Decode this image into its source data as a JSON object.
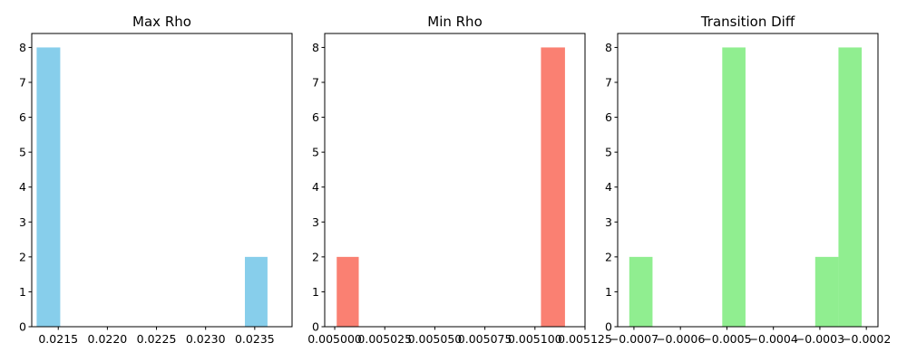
{
  "chart_data": [
    {
      "type": "bar",
      "title": "Max Rho",
      "color": "#87CEEB",
      "xlim": [
        0.02123,
        0.02388
      ],
      "ylim": [
        0,
        8.4
      ],
      "bin_edges": [
        0.02128,
        0.02152,
        0.02175,
        0.02199,
        0.02222,
        0.02246,
        0.02269,
        0.02293,
        0.02316,
        0.0234,
        0.02363
      ],
      "counts": [
        8,
        0,
        0,
        0,
        0,
        0,
        0,
        0,
        0,
        2
      ],
      "xticks": [
        0.0215,
        0.022,
        0.0225,
        0.023,
        0.0235
      ],
      "xtick_labels": [
        "0.0215",
        "0.0220",
        "0.0225",
        "0.0230",
        "0.0235"
      ],
      "yticks": [
        0,
        1,
        2,
        3,
        4,
        5,
        6,
        7,
        8
      ],
      "ytick_labels": [
        "0",
        "1",
        "2",
        "3",
        "4",
        "5",
        "6",
        "7",
        "8"
      ],
      "grid": false
    },
    {
      "type": "bar",
      "title": "Min Rho",
      "color": "#FA8072",
      "xlim": [
        0.004995,
        0.005125
      ],
      "ylim": [
        0,
        8.4
      ],
      "bin_edges": [
        0.005001,
        0.005012,
        0.005024,
        0.005035,
        0.005046,
        0.005058,
        0.005069,
        0.00508,
        0.005092,
        0.005103,
        0.005115
      ],
      "counts": [
        2,
        0,
        0,
        0,
        0,
        0,
        0,
        0,
        0,
        8
      ],
      "xticks": [
        0.005,
        0.005025,
        0.00505,
        0.005075,
        0.0051,
        0.005125
      ],
      "xtick_labels": [
        "0.005000",
        "0.005025",
        "0.005050",
        "0.005075",
        "0.005100",
        "0.005125"
      ],
      "yticks": [
        0,
        1,
        2,
        3,
        4,
        5,
        6,
        7,
        8
      ],
      "ytick_labels": [
        "0",
        "1",
        "2",
        "3",
        "4",
        "5",
        "6",
        "7",
        "8"
      ],
      "grid": false
    },
    {
      "type": "bar",
      "title": "Transition Diff",
      "color": "#90EE90",
      "xlim": [
        -0.000735,
        -0.000175
      ],
      "ylim": [
        0,
        8.4
      ],
      "bin_edges": [
        -0.00071,
        -0.00066,
        -0.00061,
        -0.00056,
        -0.00051,
        -0.00046,
        -0.00041,
        -0.00036,
        -0.00031,
        -0.00026,
        -0.00021
      ],
      "counts": [
        2,
        0,
        0,
        0,
        8,
        0,
        0,
        0,
        2,
        8
      ],
      "xticks": [
        -0.0007,
        -0.0006,
        -0.0005,
        -0.0004,
        -0.0003,
        -0.0002
      ],
      "xtick_labels": [
        "−0.0007",
        "−0.0006",
        "−0.0005",
        "−0.0004",
        "−0.0003",
        "−0.0002"
      ],
      "yticks": [
        0,
        1,
        2,
        3,
        4,
        5,
        6,
        7,
        8
      ],
      "ytick_labels": [
        "0",
        "1",
        "2",
        "3",
        "4",
        "5",
        "6",
        "7",
        "8"
      ],
      "grid": false
    }
  ]
}
